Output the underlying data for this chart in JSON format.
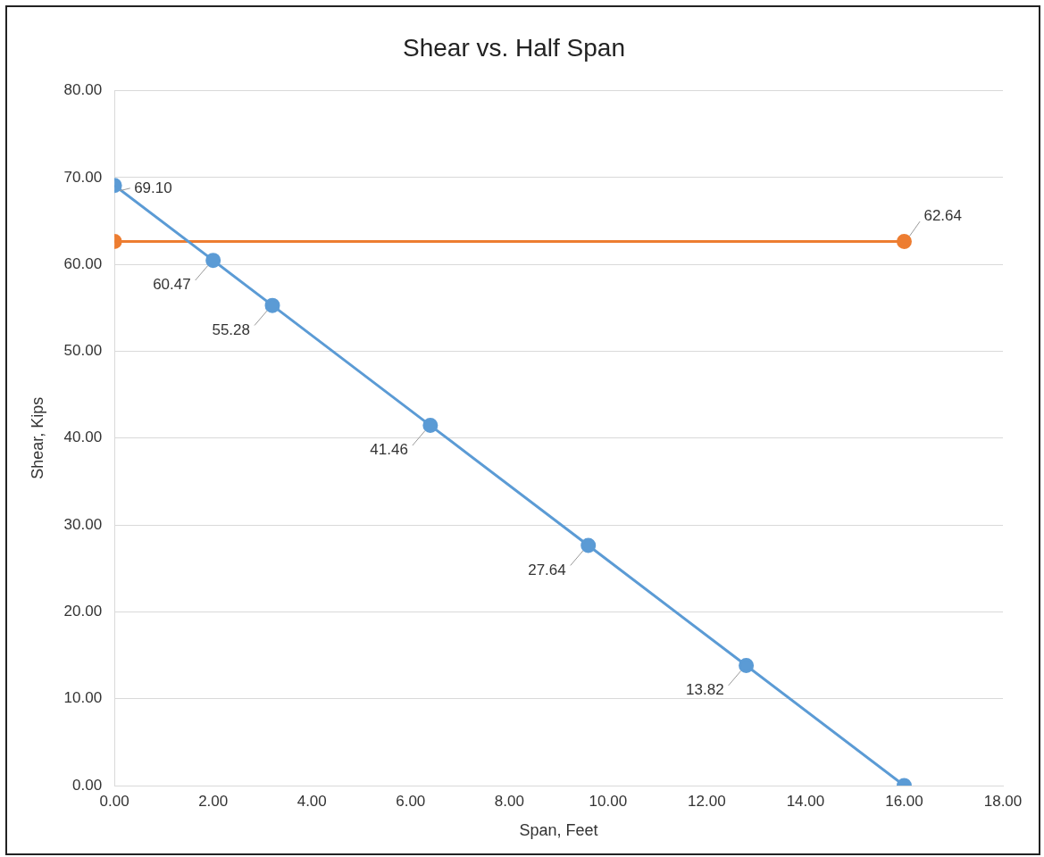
{
  "chart_data": {
    "type": "line",
    "title": "Shear vs. Half Span",
    "xlabel": "Span, Feet",
    "ylabel": "Shear, Kips",
    "xlim": [
      0,
      18
    ],
    "xticks": [
      {
        "value": 0,
        "label": "0.00"
      },
      {
        "value": 2,
        "label": "2.00"
      },
      {
        "value": 4,
        "label": "4.00"
      },
      {
        "value": 6,
        "label": "6.00"
      },
      {
        "value": 8,
        "label": "8.00"
      },
      {
        "value": 10,
        "label": "10.00"
      },
      {
        "value": 12,
        "label": "12.00"
      },
      {
        "value": 14,
        "label": "14.00"
      },
      {
        "value": 16,
        "label": "16.00"
      },
      {
        "value": 18,
        "label": "18.00"
      }
    ],
    "ylim": [
      0,
      80
    ],
    "yticks": [
      {
        "value": 0,
        "label": "0.00"
      },
      {
        "value": 10,
        "label": "10.00"
      },
      {
        "value": 20,
        "label": "20.00"
      },
      {
        "value": 30,
        "label": "30.00"
      },
      {
        "value": 40,
        "label": "40.00"
      },
      {
        "value": 50,
        "label": "50.00"
      },
      {
        "value": 60,
        "label": "60.00"
      },
      {
        "value": 70,
        "label": "70.00"
      },
      {
        "value": 80,
        "label": "80.00"
      }
    ],
    "grid": "y",
    "legend": false,
    "marker": "circle",
    "line_style": "solid",
    "series": [
      {
        "color": "#5b9bd5",
        "x": [
          0,
          2,
          3.2,
          6.4,
          9.6,
          12.8,
          16
        ],
        "values": [
          69.1,
          60.47,
          55.28,
          41.46,
          27.64,
          13.82,
          0
        ],
        "value_labels": [
          "69.10",
          "60.47",
          "55.28",
          "41.46",
          "27.64",
          "13.82",
          null
        ]
      },
      {
        "color": "#ed7d31",
        "x": [
          0,
          16
        ],
        "values": [
          62.64,
          62.64
        ],
        "value_labels": [
          null,
          "62.64"
        ]
      }
    ]
  }
}
